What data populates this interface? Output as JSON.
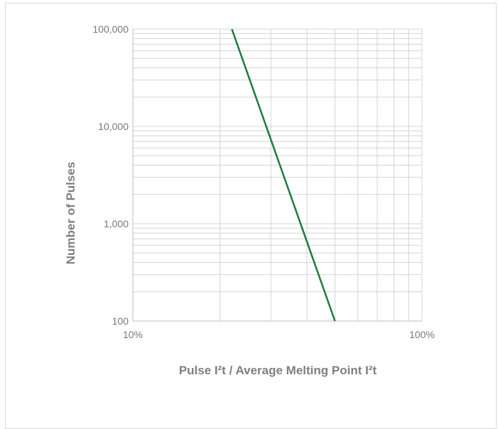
{
  "chart_data": {
    "type": "line",
    "xscale": "log",
    "yscale": "log",
    "xlim": [
      0.1,
      1.0
    ],
    "ylim": [
      100,
      100000
    ],
    "xticks": [
      "10%",
      "100%"
    ],
    "yticks": [
      "100",
      "1,000",
      "10,000",
      "100,000"
    ],
    "xlabel": "Pulse I²t / Average Melting Point I²t",
    "ylabel": "Number of Pulses",
    "grid": true,
    "series": [
      {
        "x": [
          0.22,
          0.5
        ],
        "y": [
          100000,
          100
        ],
        "color": "#1e7b3c"
      }
    ]
  }
}
